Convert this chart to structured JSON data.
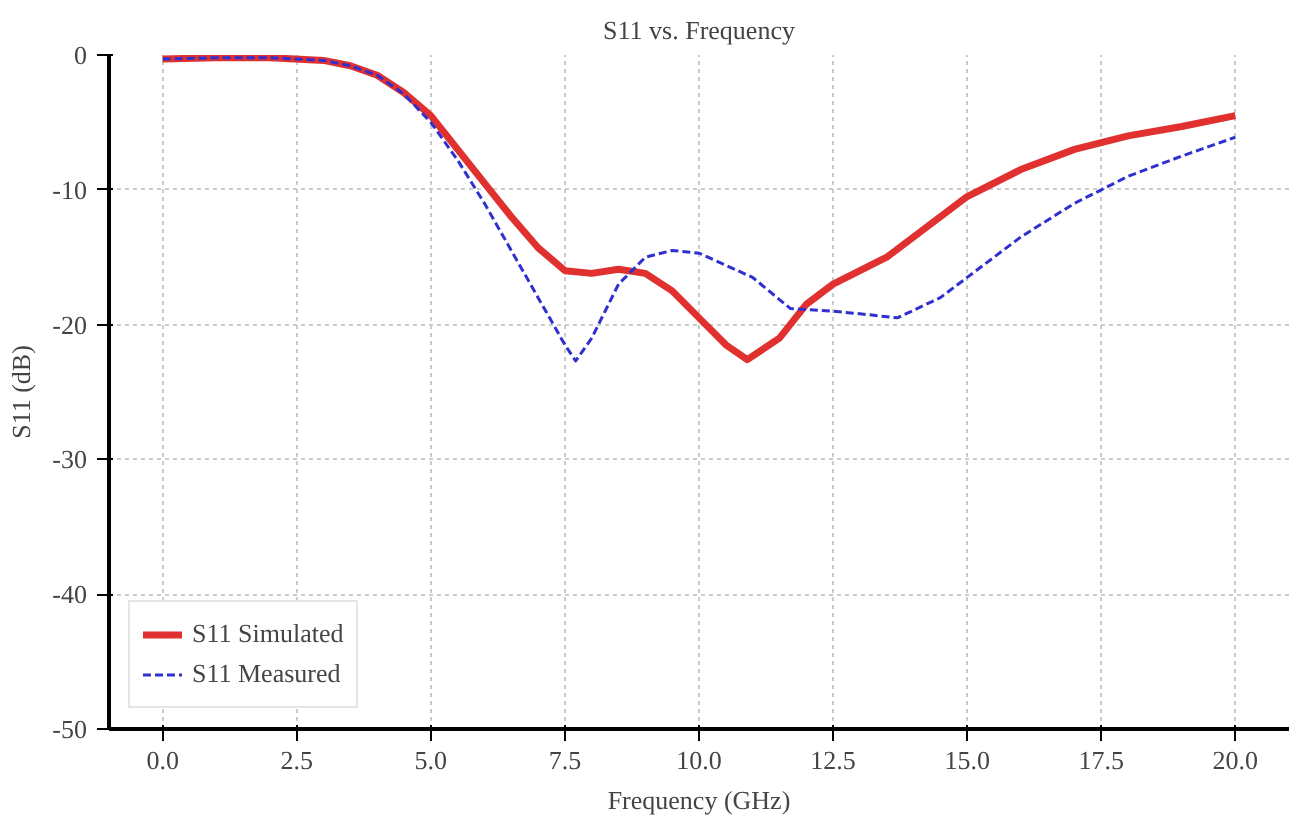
{
  "chart_data": {
    "type": "line",
    "title": "S11 vs. Frequency",
    "xlabel": "Frequency (GHz)",
    "ylabel": "S11 (dB)",
    "xlim": [
      -1,
      21
    ],
    "ylim": [
      -50,
      0
    ],
    "xticks": [
      {
        "value": 0,
        "label": "0.0"
      },
      {
        "value": 2.5,
        "label": "2.5"
      },
      {
        "value": 5,
        "label": "5.0"
      },
      {
        "value": 7.5,
        "label": "7.5"
      },
      {
        "value": 10,
        "label": "10.0"
      },
      {
        "value": 12.5,
        "label": "12.5"
      },
      {
        "value": 15,
        "label": "15.0"
      },
      {
        "value": 17.5,
        "label": "17.5"
      },
      {
        "value": 20,
        "label": "20.0"
      }
    ],
    "yticks": [
      -50,
      -40,
      -30,
      -20,
      -10,
      0
    ],
    "grid": true,
    "legend": "bottom left",
    "series": [
      {
        "name": "S11 Simulated",
        "color": "#e03030",
        "line_style": "solid",
        "x": [
          0,
          1,
          2,
          3,
          3.5,
          4,
          4.5,
          5,
          5.5,
          6,
          6.5,
          7,
          7.5,
          8,
          8.5,
          9,
          9.5,
          10,
          10.5,
          10.9,
          11.5,
          12,
          12.5,
          13.5,
          14.5,
          15,
          16,
          17,
          18,
          19,
          20
        ],
        "values": [
          -0.3,
          -0.2,
          -0.2,
          -0.4,
          -0.8,
          -1.5,
          -2.8,
          -4.5,
          -7,
          -9.5,
          -12,
          -14.3,
          -16,
          -16.2,
          -15.9,
          -16.2,
          -17.5,
          -19.5,
          -21.5,
          -22.6,
          -21,
          -18.5,
          -17,
          -15,
          -12,
          -10.5,
          -8.5,
          -7,
          -6,
          -5.3,
          -4.5
        ]
      },
      {
        "name": "S11 Measured",
        "color": "#3030d0",
        "line_style": "dashed",
        "x": [
          0,
          1,
          2,
          3,
          3.5,
          4,
          4.5,
          5,
          5.5,
          6,
          6.5,
          7,
          7.5,
          7.7,
          8,
          8.5,
          9,
          9.5,
          10,
          11,
          11.7,
          12.5,
          13,
          13.7,
          14.5,
          15,
          16,
          17,
          17.5,
          18,
          19,
          20
        ],
        "values": [
          -0.3,
          -0.2,
          -0.2,
          -0.4,
          -0.8,
          -1.5,
          -2.9,
          -5,
          -7.8,
          -11,
          -14.5,
          -18,
          -21.5,
          -22.7,
          -21,
          -17,
          -15,
          -14.5,
          -14.7,
          -16.5,
          -18.8,
          -19,
          -19.2,
          -19.5,
          -18,
          -16.5,
          -13.5,
          -11,
          -10,
          -9,
          -7.5,
          -6.1
        ]
      }
    ]
  }
}
